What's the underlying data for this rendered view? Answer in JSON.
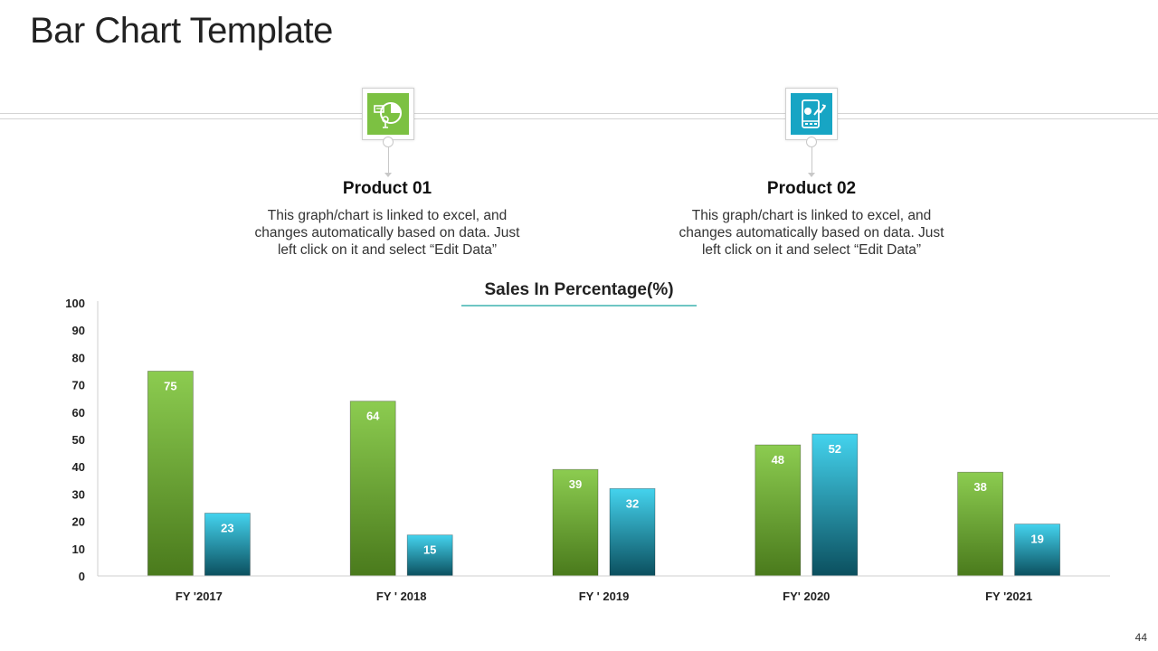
{
  "slide": {
    "title": "Bar Chart Template",
    "page_number": "44"
  },
  "products": [
    {
      "title": "Product 01",
      "description_lines": [
        "This graph/chart is linked to excel, and",
        "changes automatically based on data. Just",
        "left click on it and select “Edit Data”"
      ],
      "icon": "pie-chart-icon",
      "color": "#7cc142"
    },
    {
      "title": "Product 02",
      "description_lines": [
        "This graph/chart is linked to excel, and",
        "changes automatically based on data. Just",
        "left click on it and select “Edit Data”"
      ],
      "icon": "mobile-analytics-icon",
      "color": "#17a5c4"
    }
  ],
  "chart_data": {
    "type": "bar",
    "title": "Sales In Percentage(%)",
    "categories": [
      "FY '2017",
      "FY ' 2018",
      "FY ' 2019",
      "FY' 2020",
      "FY '2021"
    ],
    "series": [
      {
        "name": "Product 01",
        "values": [
          75,
          64,
          39,
          48,
          38
        ],
        "color_top": "#8ccc50",
        "color_bottom": "#4a7a1c"
      },
      {
        "name": "Product 02",
        "values": [
          23,
          15,
          32,
          52,
          19
        ],
        "color_top": "#44d3ee",
        "color_bottom": "#0b4f5e"
      }
    ],
    "ylim": [
      0,
      100
    ],
    "yticks": [
      "0",
      "10",
      "20",
      "30",
      "40",
      "50",
      "60",
      "70",
      "80",
      "90",
      "100"
    ],
    "xlabel": "",
    "ylabel": "",
    "grid": false,
    "legend": "none",
    "accent_color": "#17a5a0"
  }
}
